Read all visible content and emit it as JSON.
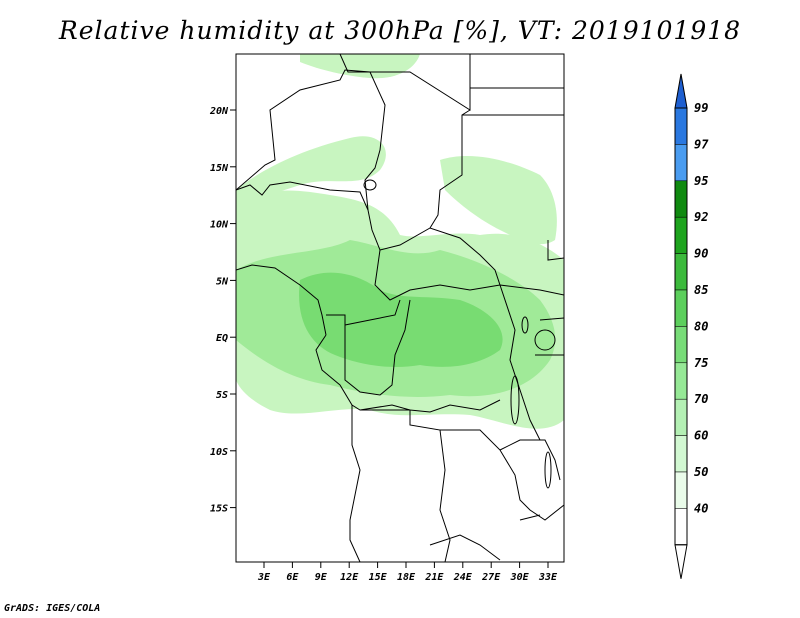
{
  "title": "Relative humidity at 300hPa [%], VT: 2019101918",
  "footer": "GrADS: IGES/COLA",
  "map": {
    "lat_labels": [
      "20N",
      "15N",
      "10N",
      "5N",
      "EQ",
      "5S",
      "10S",
      "15S"
    ],
    "lon_labels": [
      "3E",
      "6E",
      "9E",
      "12E",
      "15E",
      "18E",
      "21E",
      "24E",
      "27E",
      "30E",
      "33E"
    ]
  },
  "colorbar": {
    "levels": [
      "99",
      "97",
      "95",
      "92",
      "90",
      "85",
      "80",
      "75",
      "70",
      "60",
      "50",
      "40"
    ],
    "colors": [
      "#1e5fd0",
      "#2a78e0",
      "#4a9cf0",
      "#108a10",
      "#1ea41e",
      "#3cba3c",
      "#5ccf5c",
      "#78dc78",
      "#96e896",
      "#b4f0b4",
      "#d2f8d2",
      "#eafcea",
      "#ffffff"
    ]
  },
  "humidity_colors": {
    "light": "#c8f5c0",
    "mid": "#a0ea98",
    "strong": "#78dc72"
  }
}
